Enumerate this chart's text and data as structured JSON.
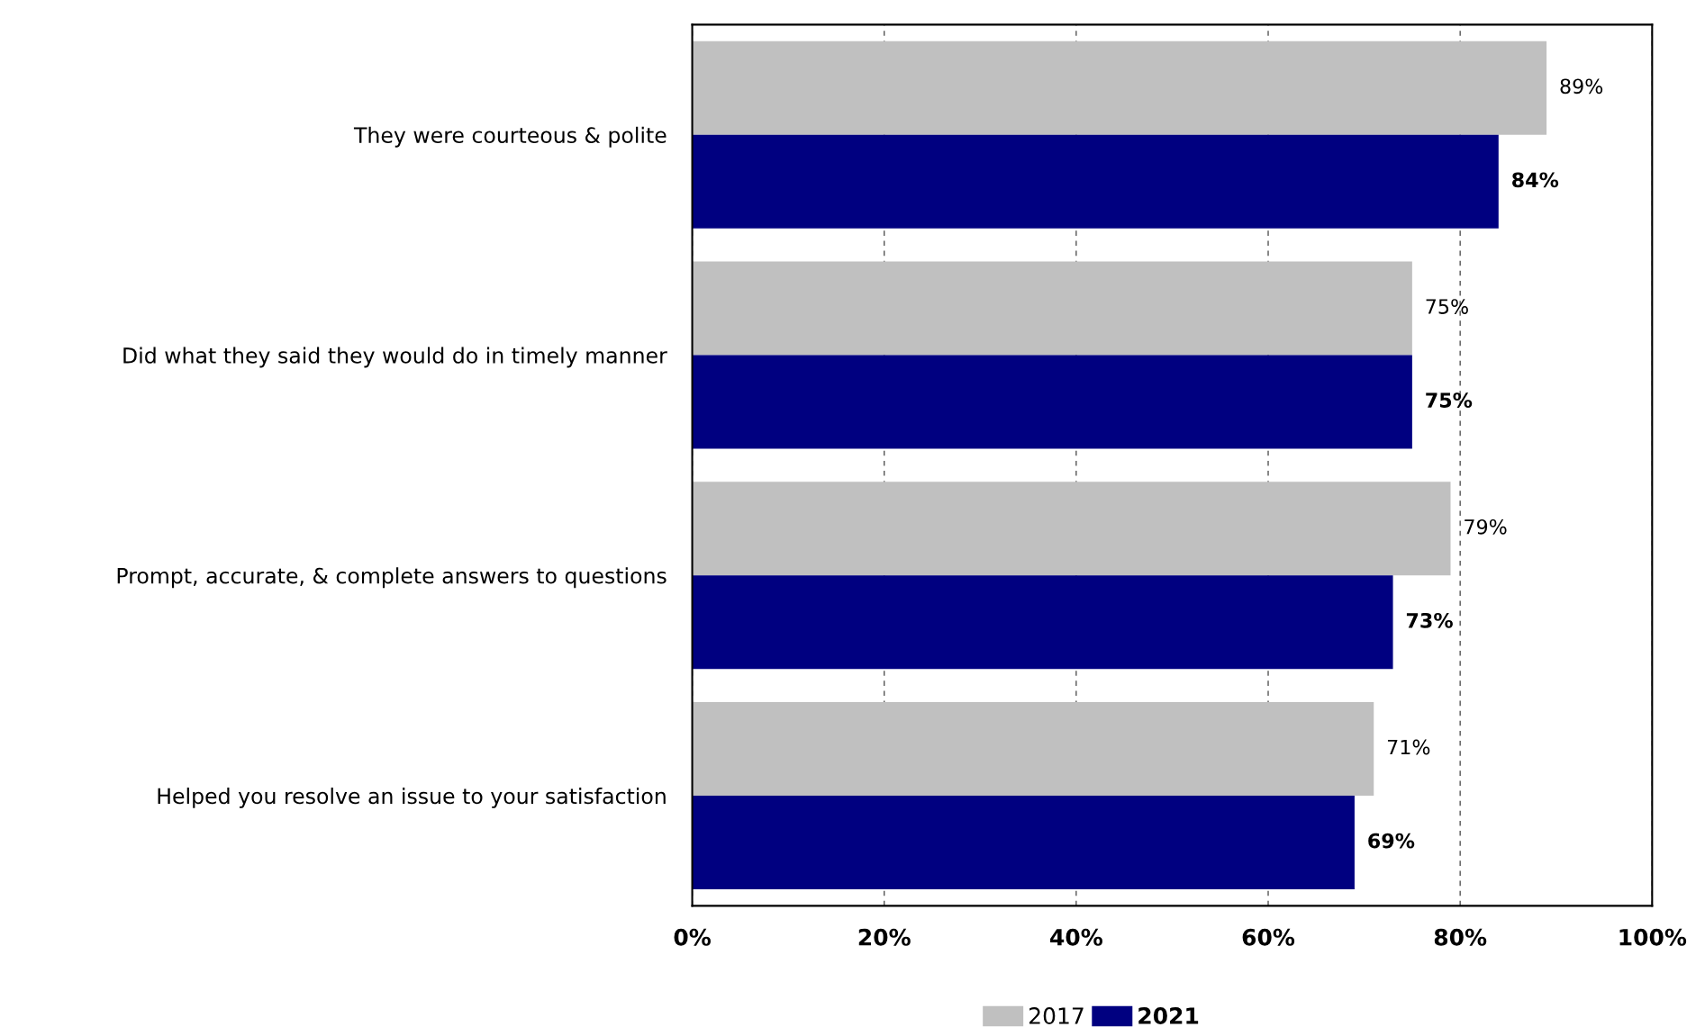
{
  "chart_data": {
    "type": "bar",
    "orientation": "horizontal",
    "categories": [
      "They were courteous & polite",
      "Did what they said they would do in timely manner",
      "Prompt, accurate, & complete answers to questions",
      "Helped you resolve an issue to your satisfaction"
    ],
    "series": [
      {
        "name": "2017",
        "color": "#c0c0c0",
        "values": [
          89,
          75,
          79,
          71
        ],
        "value_labels": [
          "89%",
          "75%",
          "79%",
          "71%"
        ]
      },
      {
        "name": "2021",
        "color": "#000080",
        "values": [
          84,
          75,
          73,
          69
        ],
        "value_labels": [
          "84%",
          "75%",
          "73%",
          "69%"
        ]
      }
    ],
    "xlim": [
      0,
      100
    ],
    "xticks": [
      {
        "value": 0,
        "label": "0%"
      },
      {
        "value": 20,
        "label": "20%"
      },
      {
        "value": 40,
        "label": "40%"
      },
      {
        "value": 60,
        "label": "60%"
      },
      {
        "value": 80,
        "label": "80%"
      },
      {
        "value": 100,
        "label": "100%"
      }
    ],
    "grid": "x",
    "legend": "bottom"
  }
}
